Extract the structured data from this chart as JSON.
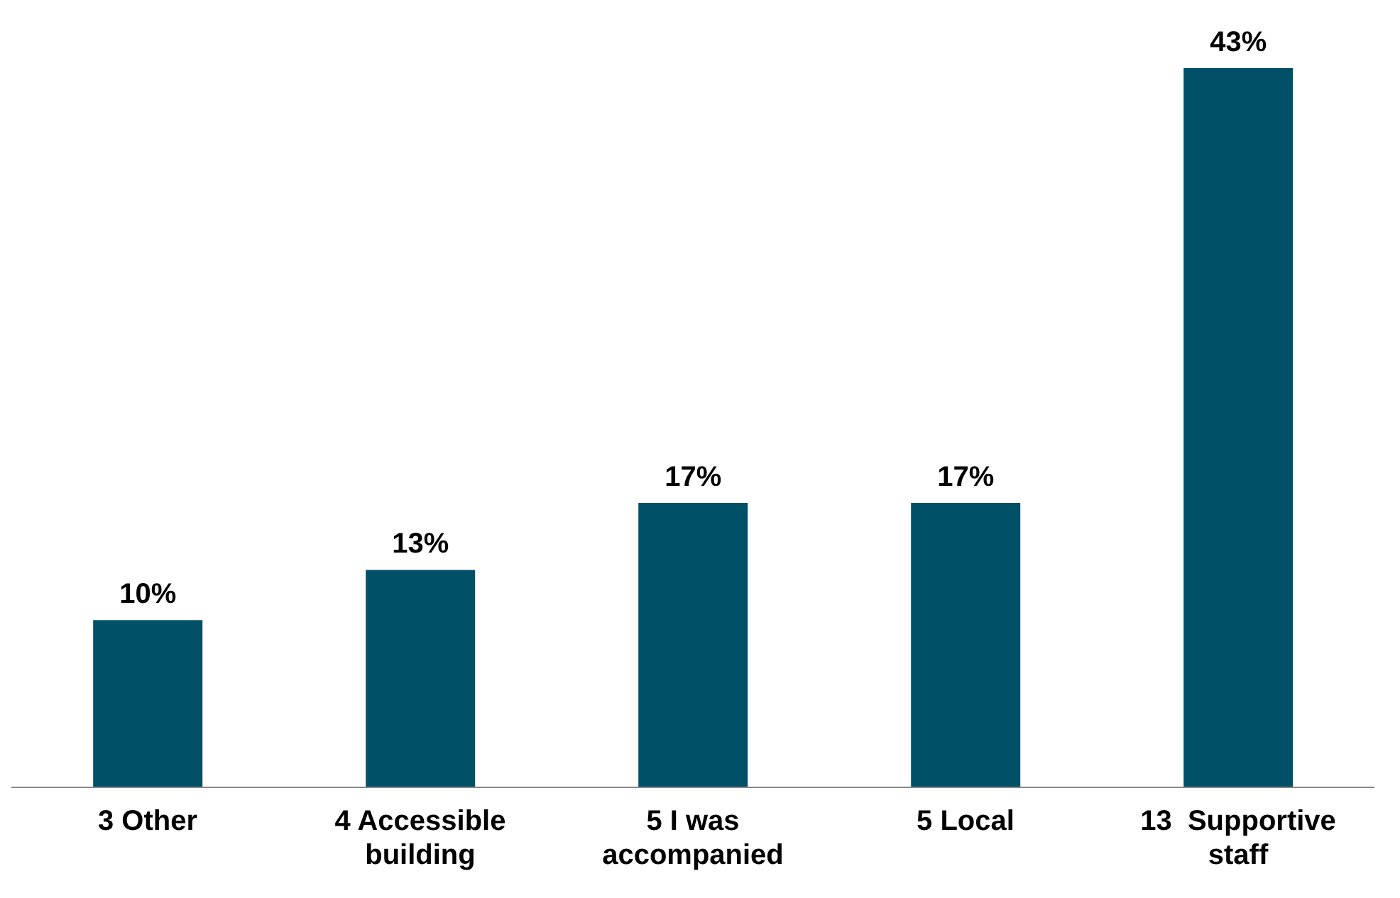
{
  "chart_data": {
    "type": "bar",
    "categories": [
      "3 Other",
      "4 Accessible building",
      "5 I was accompanied",
      "5 Local",
      "13  Supportive staff"
    ],
    "values": [
      10,
      13,
      17,
      17,
      43
    ],
    "value_labels": [
      "10%",
      "13%",
      "17%",
      "17%",
      "43%"
    ],
    "color": "#005068"
  }
}
